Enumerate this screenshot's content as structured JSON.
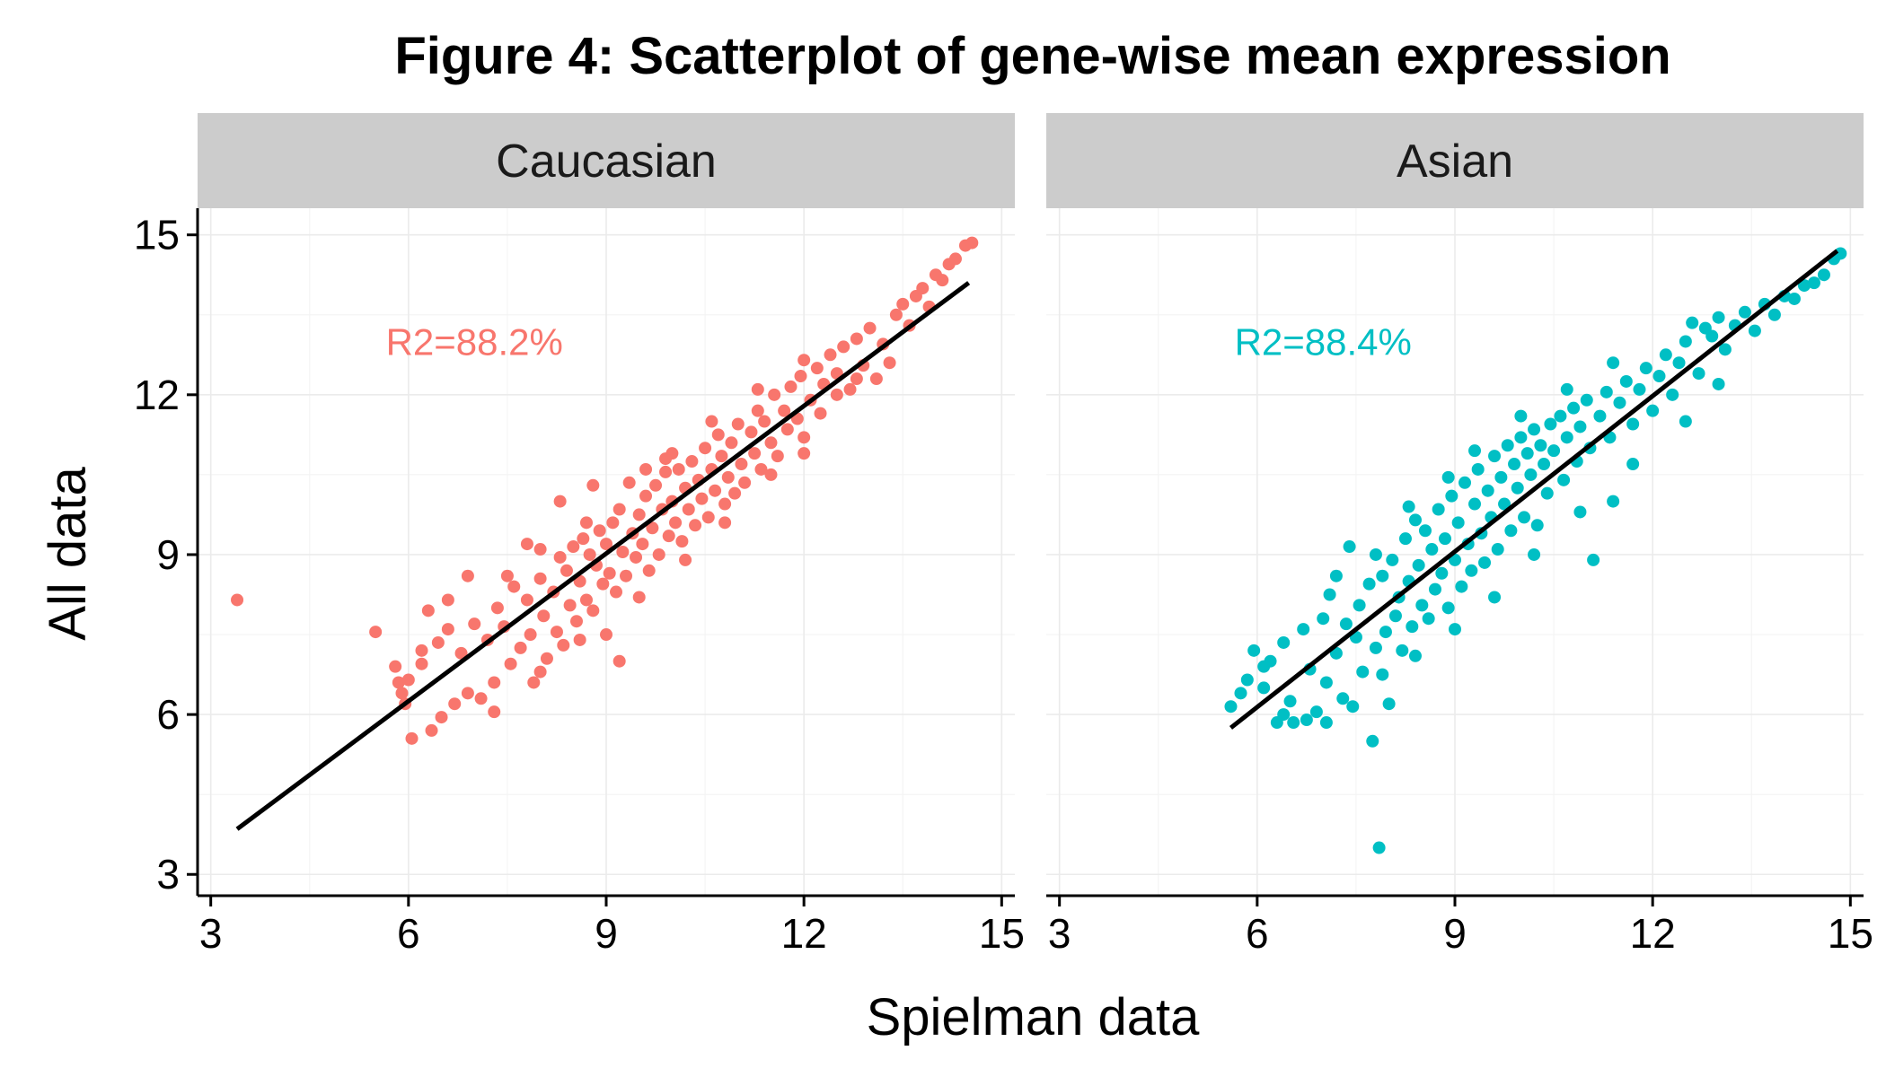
{
  "chart_data": {
    "type": "scatter",
    "title": "Figure 4: Scatterplot of gene-wise mean expression",
    "xlabel": "Spielman data",
    "ylabel": "All data",
    "xlim": [
      2.8,
      15.2
    ],
    "ylim": [
      2.6,
      15.5
    ],
    "x_ticks": [
      3,
      6,
      9,
      12,
      15
    ],
    "y_ticks": [
      3,
      6,
      9,
      12,
      15
    ],
    "grid": true,
    "facets": [
      {
        "name": "Caucasian",
        "color": "#F8766D",
        "annotation": "R2=88.2%",
        "annotation_at": [
          7.0,
          13.0
        ],
        "fit_line": [
          [
            3.4,
            3.85
          ],
          [
            14.5,
            14.1
          ]
        ],
        "points": [
          [
            3.4,
            8.15
          ],
          [
            5.5,
            7.55
          ],
          [
            5.8,
            6.9
          ],
          [
            5.85,
            6.6
          ],
          [
            5.9,
            6.4
          ],
          [
            6.0,
            6.65
          ],
          [
            6.05,
            5.55
          ],
          [
            6.2,
            6.95
          ],
          [
            6.3,
            7.95
          ],
          [
            6.35,
            5.7
          ],
          [
            6.45,
            7.35
          ],
          [
            6.5,
            5.95
          ],
          [
            6.6,
            7.6
          ],
          [
            6.7,
            6.2
          ],
          [
            6.8,
            7.15
          ],
          [
            6.9,
            6.4
          ],
          [
            7.0,
            7.7
          ],
          [
            7.1,
            6.3
          ],
          [
            7.2,
            7.4
          ],
          [
            7.3,
            6.05
          ],
          [
            7.35,
            8.0
          ],
          [
            7.45,
            7.65
          ],
          [
            7.55,
            6.95
          ],
          [
            7.6,
            8.4
          ],
          [
            7.7,
            7.25
          ],
          [
            7.8,
            8.15
          ],
          [
            7.85,
            7.5
          ],
          [
            7.9,
            6.6
          ],
          [
            8.0,
            8.55
          ],
          [
            8.05,
            7.85
          ],
          [
            8.1,
            7.05
          ],
          [
            8.2,
            8.3
          ],
          [
            8.25,
            7.55
          ],
          [
            8.3,
            8.95
          ],
          [
            8.35,
            7.3
          ],
          [
            8.4,
            8.7
          ],
          [
            8.45,
            8.05
          ],
          [
            8.5,
            9.15
          ],
          [
            8.55,
            7.75
          ],
          [
            8.6,
            8.5
          ],
          [
            8.65,
            9.3
          ],
          [
            8.7,
            8.15
          ],
          [
            8.75,
            9.0
          ],
          [
            8.8,
            7.95
          ],
          [
            8.85,
            8.8
          ],
          [
            8.9,
            9.45
          ],
          [
            8.95,
            8.45
          ],
          [
            9.0,
            9.2
          ],
          [
            9.05,
            8.65
          ],
          [
            9.1,
            9.6
          ],
          [
            9.15,
            8.3
          ],
          [
            9.2,
            9.85
          ],
          [
            9.2,
            7.0
          ],
          [
            9.25,
            9.05
          ],
          [
            9.3,
            8.6
          ],
          [
            9.35,
            10.35
          ],
          [
            9.4,
            9.4
          ],
          [
            9.45,
            8.95
          ],
          [
            9.5,
            9.75
          ],
          [
            9.55,
            9.2
          ],
          [
            9.6,
            10.1
          ],
          [
            9.65,
            8.7
          ],
          [
            9.7,
            9.5
          ],
          [
            9.75,
            10.3
          ],
          [
            9.8,
            9.0
          ],
          [
            9.85,
            9.85
          ],
          [
            9.9,
            10.55
          ],
          [
            9.95,
            9.35
          ],
          [
            10.0,
            10.0
          ],
          [
            10.05,
            9.6
          ],
          [
            10.1,
            10.6
          ],
          [
            10.15,
            9.25
          ],
          [
            10.2,
            10.25
          ],
          [
            10.25,
            9.85
          ],
          [
            10.3,
            10.75
          ],
          [
            10.35,
            9.55
          ],
          [
            10.4,
            10.4
          ],
          [
            10.45,
            10.05
          ],
          [
            10.5,
            11.0
          ],
          [
            10.55,
            9.7
          ],
          [
            10.6,
            10.6
          ],
          [
            10.65,
            10.2
          ],
          [
            10.7,
            11.25
          ],
          [
            10.75,
            10.85
          ],
          [
            10.8,
            9.95
          ],
          [
            10.85,
            10.45
          ],
          [
            10.9,
            11.1
          ],
          [
            10.95,
            10.15
          ],
          [
            11.0,
            11.45
          ],
          [
            11.05,
            10.7
          ],
          [
            11.1,
            10.35
          ],
          [
            11.2,
            11.3
          ],
          [
            11.25,
            10.9
          ],
          [
            11.3,
            11.7
          ],
          [
            11.35,
            10.6
          ],
          [
            11.4,
            11.5
          ],
          [
            11.5,
            11.1
          ],
          [
            11.55,
            12.0
          ],
          [
            11.6,
            10.85
          ],
          [
            11.7,
            11.7
          ],
          [
            11.75,
            11.35
          ],
          [
            11.8,
            12.15
          ],
          [
            11.9,
            11.55
          ],
          [
            11.95,
            12.35
          ],
          [
            12.0,
            11.2
          ],
          [
            12.1,
            11.9
          ],
          [
            12.2,
            12.5
          ],
          [
            12.25,
            11.65
          ],
          [
            12.3,
            12.2
          ],
          [
            12.4,
            12.75
          ],
          [
            12.5,
            12.4
          ],
          [
            12.6,
            12.9
          ],
          [
            12.7,
            12.1
          ],
          [
            12.8,
            13.05
          ],
          [
            12.9,
            12.55
          ],
          [
            13.0,
            13.25
          ],
          [
            13.1,
            12.3
          ],
          [
            13.2,
            12.95
          ],
          [
            13.3,
            12.6
          ],
          [
            13.4,
            13.5
          ],
          [
            13.5,
            13.7
          ],
          [
            13.6,
            13.3
          ],
          [
            13.7,
            13.85
          ],
          [
            13.8,
            14.0
          ],
          [
            13.9,
            13.65
          ],
          [
            14.0,
            14.25
          ],
          [
            14.1,
            14.15
          ],
          [
            14.2,
            14.45
          ],
          [
            14.3,
            14.55
          ],
          [
            14.45,
            14.8
          ],
          [
            14.55,
            14.85
          ],
          [
            12.8,
            12.3
          ],
          [
            12.5,
            12.0
          ],
          [
            12.0,
            12.65
          ],
          [
            11.3,
            12.1
          ],
          [
            10.6,
            11.5
          ],
          [
            9.9,
            10.8
          ],
          [
            8.7,
            9.6
          ],
          [
            8.0,
            9.1
          ],
          [
            7.5,
            8.6
          ],
          [
            6.6,
            8.15
          ],
          [
            7.3,
            6.6
          ],
          [
            8.0,
            6.8
          ],
          [
            8.6,
            7.4
          ],
          [
            9.0,
            7.5
          ],
          [
            9.5,
            8.2
          ],
          [
            10.2,
            8.9
          ],
          [
            10.8,
            9.6
          ],
          [
            11.5,
            10.5
          ],
          [
            12.0,
            10.9
          ],
          [
            8.3,
            10.0
          ],
          [
            8.8,
            10.3
          ],
          [
            9.6,
            10.6
          ],
          [
            10.0,
            10.9
          ],
          [
            7.8,
            9.2
          ],
          [
            6.9,
            8.6
          ],
          [
            6.2,
            7.2
          ],
          [
            5.95,
            6.2
          ]
        ]
      },
      {
        "name": "Asian",
        "color": "#00BFC4",
        "annotation": "R2=88.4%",
        "annotation_at": [
          7.0,
          13.0
        ],
        "fit_line": [
          [
            5.6,
            5.75
          ],
          [
            14.8,
            14.7
          ]
        ],
        "points": [
          [
            5.6,
            6.15
          ],
          [
            5.75,
            6.4
          ],
          [
            5.85,
            6.65
          ],
          [
            5.95,
            7.2
          ],
          [
            6.1,
            6.5
          ],
          [
            6.2,
            7.0
          ],
          [
            6.3,
            5.85
          ],
          [
            6.4,
            7.35
          ],
          [
            6.5,
            6.25
          ],
          [
            6.55,
            5.85
          ],
          [
            6.7,
            7.6
          ],
          [
            6.75,
            5.9
          ],
          [
            6.8,
            6.85
          ],
          [
            6.9,
            6.05
          ],
          [
            7.0,
            7.8
          ],
          [
            7.05,
            6.6
          ],
          [
            7.1,
            8.25
          ],
          [
            7.2,
            7.15
          ],
          [
            7.3,
            6.3
          ],
          [
            7.35,
            7.7
          ],
          [
            7.4,
            9.15
          ],
          [
            7.45,
            6.15
          ],
          [
            7.5,
            7.45
          ],
          [
            7.55,
            8.05
          ],
          [
            7.6,
            6.8
          ],
          [
            7.7,
            8.45
          ],
          [
            7.75,
            5.5
          ],
          [
            7.8,
            7.25
          ],
          [
            7.85,
            3.5
          ],
          [
            7.9,
            8.6
          ],
          [
            7.95,
            7.55
          ],
          [
            8.0,
            6.2
          ],
          [
            8.05,
            8.9
          ],
          [
            8.1,
            7.85
          ],
          [
            8.15,
            8.2
          ],
          [
            8.2,
            7.2
          ],
          [
            8.25,
            9.3
          ],
          [
            8.3,
            8.5
          ],
          [
            8.35,
            7.65
          ],
          [
            8.4,
            9.65
          ],
          [
            8.45,
            8.8
          ],
          [
            8.5,
            8.05
          ],
          [
            8.55,
            9.45
          ],
          [
            8.6,
            7.8
          ],
          [
            8.65,
            9.1
          ],
          [
            8.7,
            8.35
          ],
          [
            8.75,
            9.85
          ],
          [
            8.8,
            8.65
          ],
          [
            8.85,
            9.3
          ],
          [
            8.9,
            8.0
          ],
          [
            8.95,
            10.1
          ],
          [
            9.0,
            8.9
          ],
          [
            9.05,
            9.6
          ],
          [
            9.1,
            8.4
          ],
          [
            9.15,
            10.35
          ],
          [
            9.2,
            9.2
          ],
          [
            9.25,
            8.7
          ],
          [
            9.3,
            9.95
          ],
          [
            9.35,
            10.6
          ],
          [
            9.4,
            9.4
          ],
          [
            9.45,
            8.85
          ],
          [
            9.5,
            10.2
          ],
          [
            9.55,
            9.7
          ],
          [
            9.6,
            10.85
          ],
          [
            9.65,
            9.1
          ],
          [
            9.7,
            10.45
          ],
          [
            9.75,
            9.95
          ],
          [
            9.8,
            11.05
          ],
          [
            9.85,
            9.45
          ],
          [
            9.9,
            10.7
          ],
          [
            9.95,
            10.25
          ],
          [
            10.0,
            11.2
          ],
          [
            10.05,
            9.7
          ],
          [
            10.1,
            10.9
          ],
          [
            10.15,
            10.5
          ],
          [
            10.2,
            11.35
          ],
          [
            10.25,
            9.55
          ],
          [
            10.3,
            11.05
          ],
          [
            10.35,
            10.7
          ],
          [
            10.4,
            10.15
          ],
          [
            10.45,
            11.45
          ],
          [
            10.5,
            10.95
          ],
          [
            10.6,
            11.6
          ],
          [
            10.65,
            10.4
          ],
          [
            10.7,
            11.2
          ],
          [
            10.8,
            11.75
          ],
          [
            10.85,
            10.75
          ],
          [
            10.9,
            11.4
          ],
          [
            11.0,
            11.9
          ],
          [
            11.05,
            11.0
          ],
          [
            11.1,
            8.9
          ],
          [
            11.2,
            11.6
          ],
          [
            11.3,
            12.05
          ],
          [
            11.35,
            11.2
          ],
          [
            11.4,
            10.0
          ],
          [
            11.5,
            11.85
          ],
          [
            11.6,
            12.25
          ],
          [
            11.7,
            11.45
          ],
          [
            11.8,
            12.1
          ],
          [
            11.9,
            12.5
          ],
          [
            12.0,
            11.7
          ],
          [
            12.1,
            12.35
          ],
          [
            12.2,
            12.75
          ],
          [
            12.3,
            12.0
          ],
          [
            12.4,
            12.6
          ],
          [
            12.5,
            13.0
          ],
          [
            12.6,
            13.35
          ],
          [
            12.7,
            12.4
          ],
          [
            12.8,
            13.25
          ],
          [
            12.9,
            13.1
          ],
          [
            13.0,
            13.45
          ],
          [
            13.1,
            12.85
          ],
          [
            13.25,
            13.3
          ],
          [
            13.4,
            13.55
          ],
          [
            13.55,
            13.2
          ],
          [
            13.7,
            13.7
          ],
          [
            13.85,
            13.5
          ],
          [
            14.0,
            13.85
          ],
          [
            14.15,
            13.8
          ],
          [
            14.3,
            14.05
          ],
          [
            14.45,
            14.1
          ],
          [
            14.6,
            14.25
          ],
          [
            14.75,
            14.55
          ],
          [
            14.85,
            14.65
          ],
          [
            10.9,
            9.8
          ],
          [
            10.2,
            9.0
          ],
          [
            9.6,
            8.2
          ],
          [
            9.0,
            7.6
          ],
          [
            8.4,
            7.1
          ],
          [
            7.9,
            6.75
          ],
          [
            11.7,
            10.7
          ],
          [
            12.5,
            11.5
          ],
          [
            13.0,
            12.2
          ],
          [
            7.2,
            8.6
          ],
          [
            7.8,
            9.0
          ],
          [
            8.3,
            9.9
          ],
          [
            8.9,
            10.45
          ],
          [
            9.3,
            10.95
          ],
          [
            10.0,
            11.6
          ],
          [
            10.7,
            12.1
          ],
          [
            11.4,
            12.6
          ],
          [
            6.1,
            6.9
          ],
          [
            6.4,
            6.0
          ],
          [
            7.05,
            5.85
          ]
        ]
      }
    ]
  }
}
